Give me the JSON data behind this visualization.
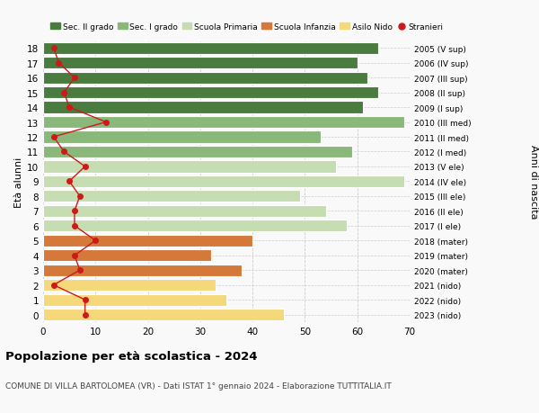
{
  "ages": [
    18,
    17,
    16,
    15,
    14,
    13,
    12,
    11,
    10,
    9,
    8,
    7,
    6,
    5,
    4,
    3,
    2,
    1,
    0
  ],
  "years": [
    "2005 (V sup)",
    "2006 (IV sup)",
    "2007 (III sup)",
    "2008 (II sup)",
    "2009 (I sup)",
    "2010 (III med)",
    "2011 (II med)",
    "2012 (I med)",
    "2013 (V ele)",
    "2014 (IV ele)",
    "2015 (III ele)",
    "2016 (II ele)",
    "2017 (I ele)",
    "2018 (mater)",
    "2019 (mater)",
    "2020 (mater)",
    "2021 (nido)",
    "2022 (nido)",
    "2023 (nido)"
  ],
  "bar_values": [
    64,
    60,
    62,
    64,
    61,
    69,
    53,
    59,
    56,
    69,
    49,
    54,
    58,
    40,
    32,
    38,
    33,
    35,
    46
  ],
  "bar_colors": [
    "#4a7c3f",
    "#4a7c3f",
    "#4a7c3f",
    "#4a7c3f",
    "#4a7c3f",
    "#8ab87a",
    "#8ab87a",
    "#8ab87a",
    "#c5ddb0",
    "#c5ddb0",
    "#c5ddb0",
    "#c5ddb0",
    "#c5ddb0",
    "#d4793a",
    "#d4793a",
    "#d4793a",
    "#f5d87a",
    "#f5d87a",
    "#f5d87a"
  ],
  "stranieri_values": [
    2,
    3,
    6,
    4,
    5,
    12,
    2,
    4,
    8,
    5,
    7,
    6,
    6,
    10,
    6,
    7,
    2,
    8,
    8
  ],
  "legend_labels": [
    "Sec. II grado",
    "Sec. I grado",
    "Scuola Primaria",
    "Scuola Infanzia",
    "Asilo Nido",
    "Stranieri"
  ],
  "legend_colors": [
    "#4a7c3f",
    "#8ab87a",
    "#c5ddb0",
    "#d4793a",
    "#f5d87a",
    "#cc1a1a"
  ],
  "ylabel": "Età alunni",
  "ylabel2": "Anni di nascita",
  "title": "Popolazione per età scolastica - 2024",
  "subtitle": "COMUNE DI VILLA BARTOLOMEA (VR) - Dati ISTAT 1° gennaio 2024 - Elaborazione TUTTITALIA.IT",
  "xlim": [
    0,
    70
  ],
  "xticks": [
    0,
    10,
    20,
    30,
    40,
    50,
    60,
    70
  ],
  "bg_color": "#f9f9f9",
  "bar_edge_color": "white",
  "grid_color": "#cccccc"
}
